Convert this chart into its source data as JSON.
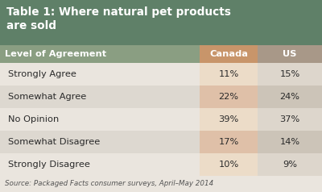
{
  "title_line1": "Table 1: Where natural pet products",
  "title_line2": "are sold",
  "title_bg_color": "#5f8068",
  "title_text_color": "#ffffff",
  "header_row": [
    "Level of Agreement",
    "Canada",
    "US"
  ],
  "header_bg_left": "#8a9e82",
  "header_bg_canada": "#c8956a",
  "header_bg_us": "#a89888",
  "header_text_color": "#ffffff",
  "rows": [
    [
      "Strongly Agree",
      "11%",
      "15%"
    ],
    [
      "Somewhat Agree",
      "22%",
      "24%"
    ],
    [
      "No Opinion",
      "39%",
      "37%"
    ],
    [
      "Somewhat Disagree",
      "17%",
      "14%"
    ],
    [
      "Strongly Disagree",
      "10%",
      "9%"
    ]
  ],
  "row_bg_light_left": "#ddd8d0",
  "row_bg_dark_left": "#eae5de",
  "row_bg_light_canada": "#dfc0a8",
  "row_bg_dark_canada": "#ecdcc8",
  "row_bg_light_us": "#ccc4b8",
  "row_bg_dark_us": "#ddd6cc",
  "row_text_color": "#2a2a2a",
  "source_text": "Source: Packaged Facts consumer surveys, April–May 2014",
  "source_text_color": "#555555",
  "fig_bg_color": "#eae5de"
}
